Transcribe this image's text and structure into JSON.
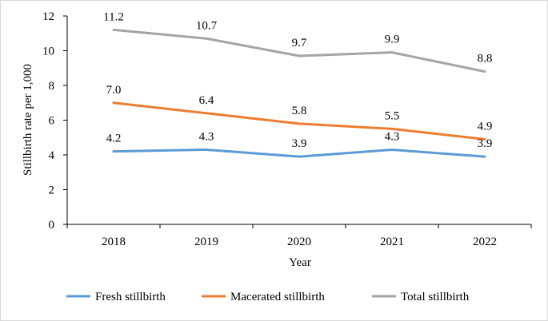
{
  "chart_data": {
    "type": "line",
    "title": "",
    "xlabel": "Year",
    "ylabel": "Stillbirth rate per 1,000",
    "categories": [
      "2018",
      "2019",
      "2020",
      "2021",
      "2022"
    ],
    "ylim": [
      0,
      12
    ],
    "yticks": [
      "0",
      "2",
      "4",
      "6",
      "8",
      "10",
      "12"
    ],
    "legend_position": "bottom",
    "grid": false,
    "series": [
      {
        "name": "Fresh stillbirth",
        "color": "#5b9bd5",
        "values": [
          4.2,
          4.3,
          3.9,
          4.3,
          3.9
        ],
        "labels": [
          "4.2",
          "4.3",
          "3.9",
          "4.3",
          "3.9"
        ]
      },
      {
        "name": "Macerated stillbirth",
        "color": "#ed7d31",
        "values": [
          7.0,
          6.4,
          5.8,
          5.5,
          4.9
        ],
        "labels": [
          "7.0",
          "6.4",
          "5.8",
          "5.5",
          "4.9"
        ]
      },
      {
        "name": "Total stillbirth",
        "color": "#a5a5a5",
        "values": [
          11.2,
          10.7,
          9.7,
          9.9,
          8.8
        ],
        "labels": [
          "11.2",
          "10.7",
          "9.7",
          "9.9",
          "8.8"
        ]
      }
    ]
  }
}
